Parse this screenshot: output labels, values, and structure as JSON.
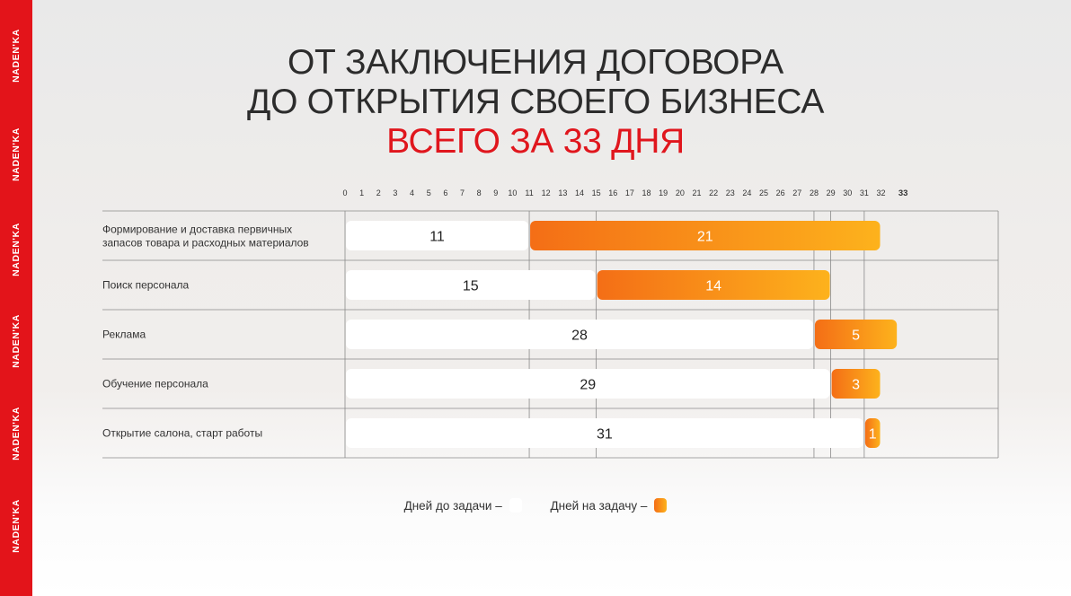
{
  "brand": {
    "text": "NADEN'KA",
    "color": "#e3141a"
  },
  "header": {
    "line1": "ОТ ЗАКЛЮЧЕНИЯ ДОГОВОРА",
    "line2": "ДО ОТКРЫТИЯ СВОЕГО БИЗНЕСА",
    "line3": "ВСЕГО ЗА 33 ДНЯ",
    "accent_color": "#e0161d"
  },
  "chart_data": {
    "type": "bar",
    "orientation": "horizontal",
    "stacked": true,
    "x_ticks": [
      "0",
      "1",
      "2",
      "3",
      "4",
      "5",
      "6",
      "7",
      "8",
      "9",
      "10",
      "11",
      "12",
      "13",
      "14",
      "15",
      "16",
      "17",
      "18",
      "19",
      "20",
      "21",
      "22",
      "23",
      "24",
      "25",
      "26",
      "27",
      "28",
      "29",
      "30",
      "31",
      "32",
      "33"
    ],
    "xlim": [
      0,
      39
    ],
    "categories": [
      "Формирование и доставка первичных запасов товара и расходных материалов",
      "Поиск персонала",
      "Реклама",
      "Обучение персонала",
      "Открытие салона, старт работы"
    ],
    "series": [
      {
        "name": "Дней до задачи",
        "values": [
          11,
          15,
          28,
          29,
          31
        ],
        "color": "#ffffff"
      },
      {
        "name": "Дней на задачу",
        "values": [
          21,
          14,
          5,
          3,
          1
        ],
        "color_start": "#f46e16",
        "color_end": "#fdb21c"
      }
    ]
  },
  "legend": {
    "before_label": "Дней до задачи –",
    "duration_label": "Дней на задачу –"
  }
}
